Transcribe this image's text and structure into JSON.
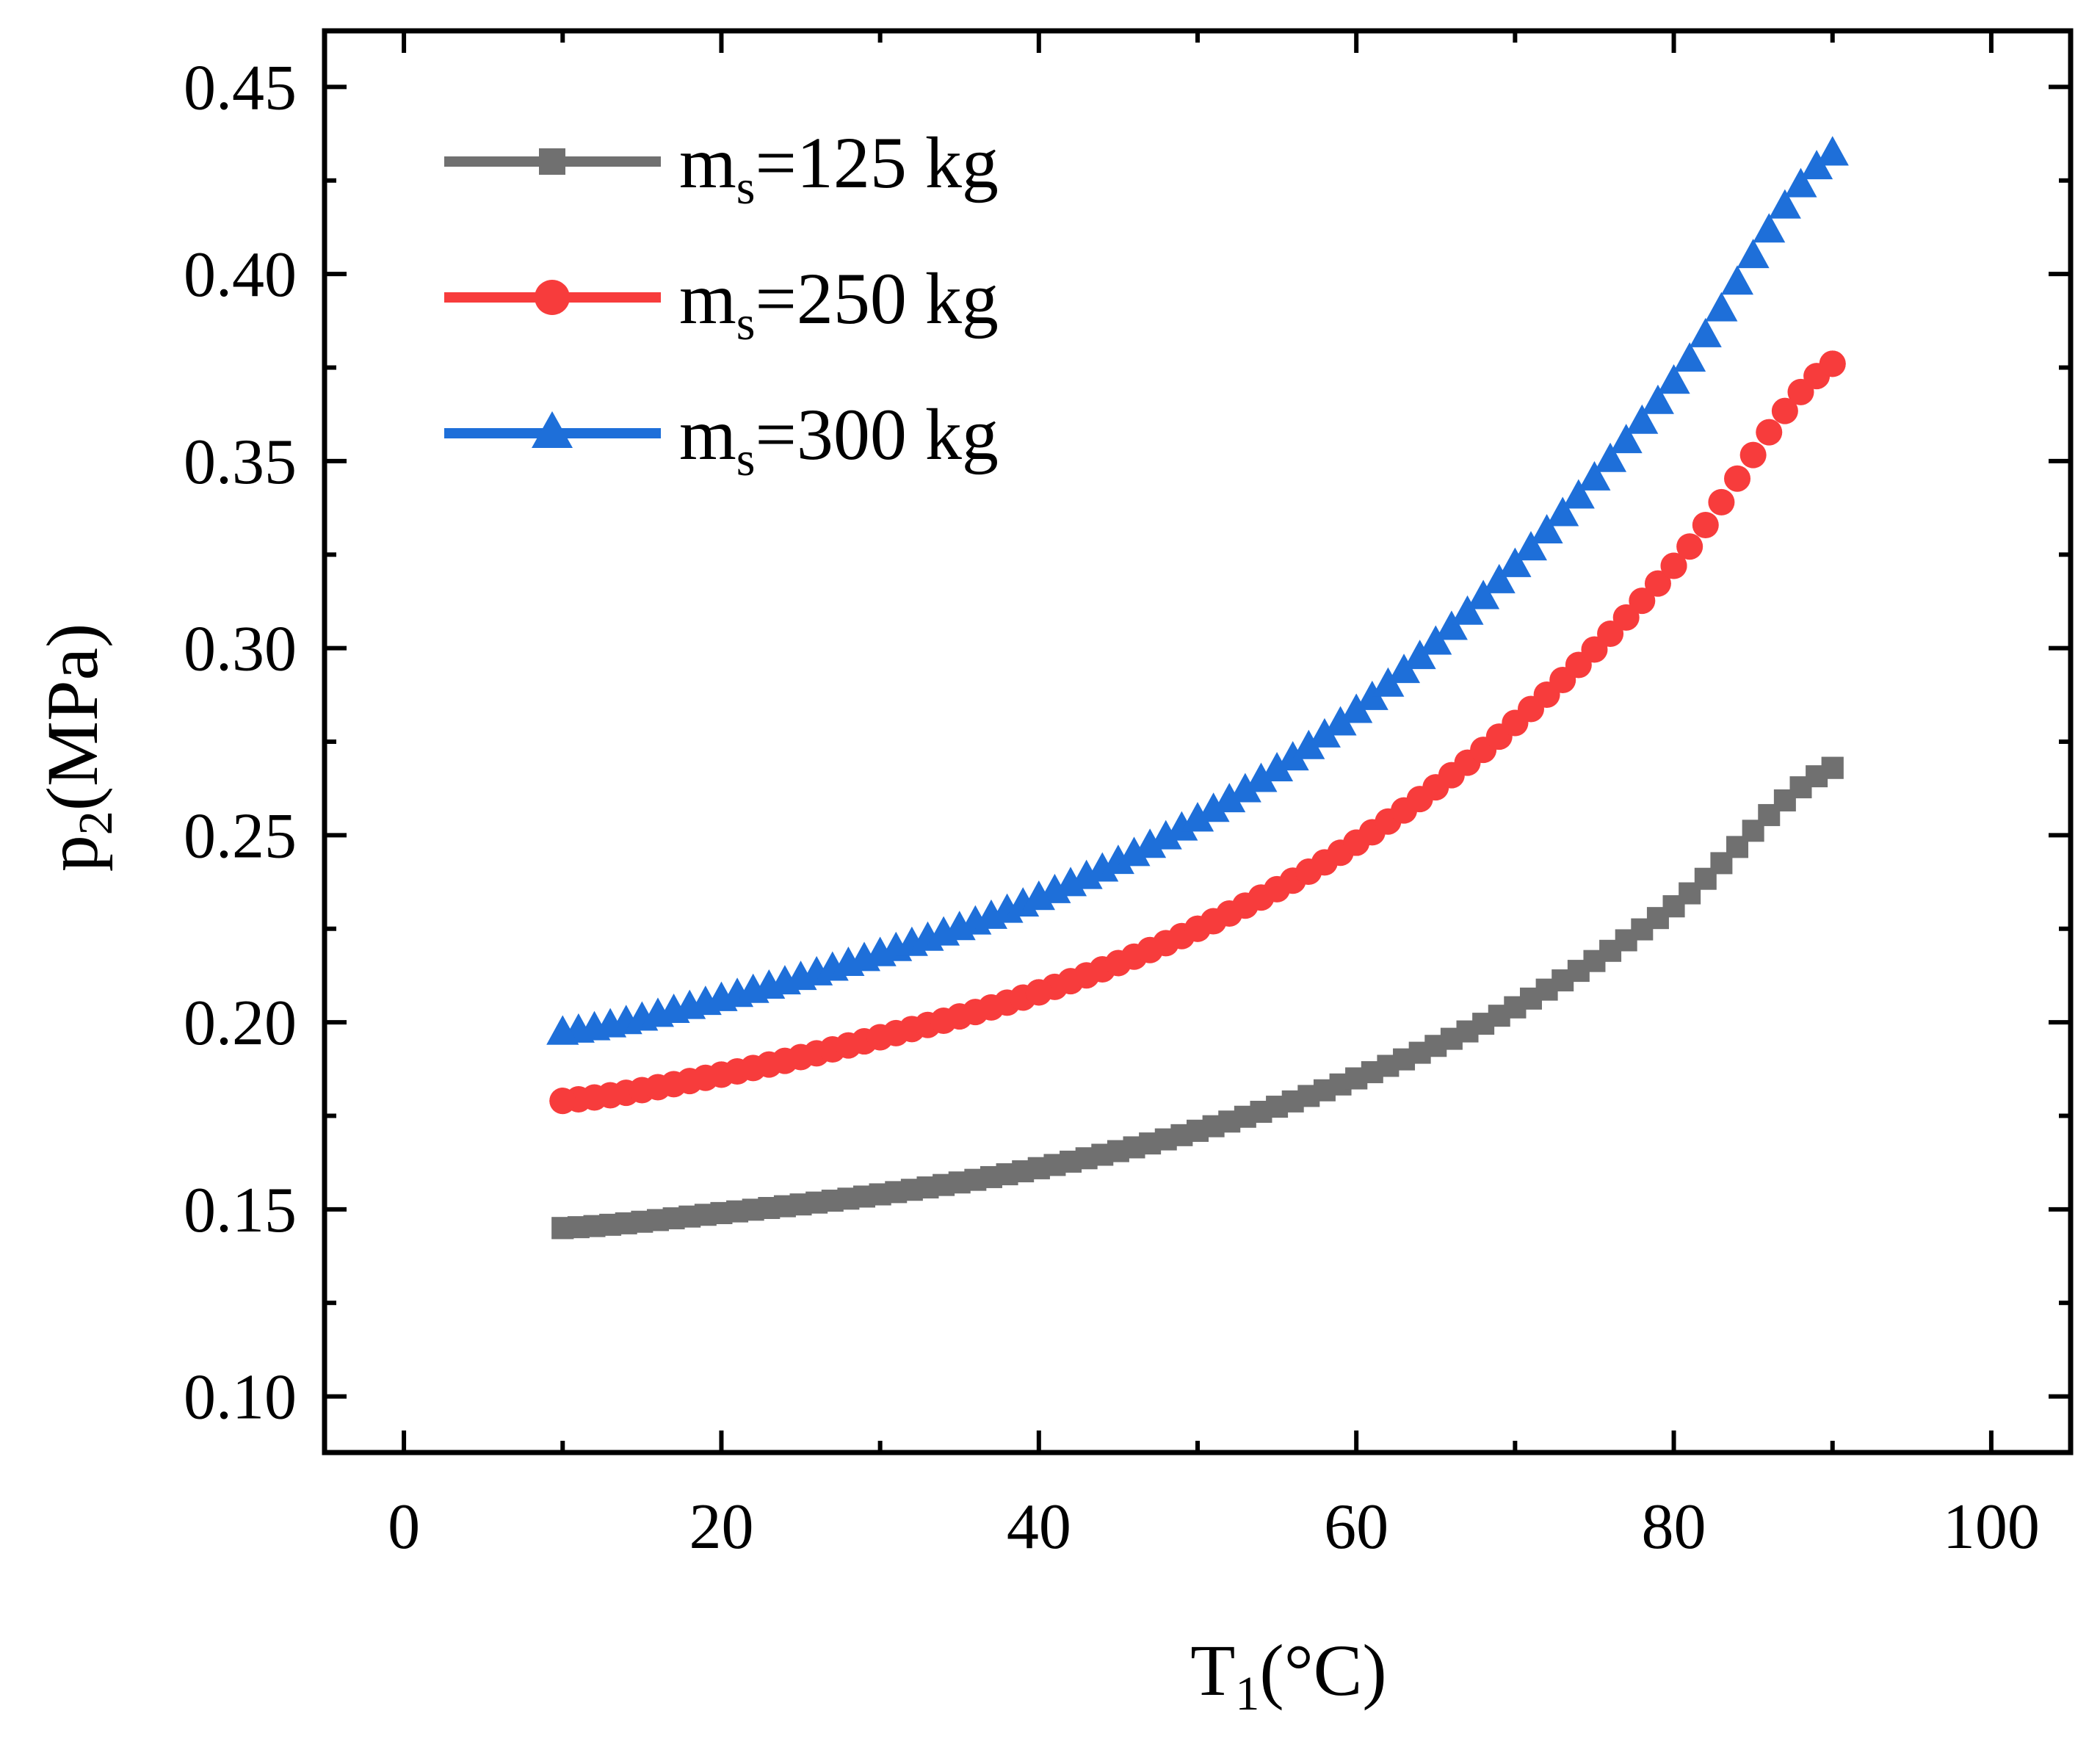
{
  "chart_data": {
    "type": "scatter",
    "title": "",
    "xlabel": {
      "main": "T",
      "sub": "1",
      "tail": "(°C)"
    },
    "ylabel": {
      "main": "p",
      "sub": "2",
      "tail": "(MPa)"
    },
    "xlim": [
      -5,
      105
    ],
    "ylim": [
      0.085,
      0.465
    ],
    "xticks": [
      0,
      20,
      40,
      60,
      80,
      100
    ],
    "xtick_labels": [
      "0",
      "20",
      "40",
      "60",
      "80",
      "100"
    ],
    "yticks": [
      0.1,
      0.15,
      0.2,
      0.25,
      0.3,
      0.35,
      0.4,
      0.45
    ],
    "ytick_labels": [
      "0.10",
      "0.15",
      "0.20",
      "0.25",
      "0.30",
      "0.35",
      "0.40",
      "0.45"
    ],
    "legend_position": "top-left",
    "series": [
      {
        "name": "m_s=125 kg",
        "legend_main": "m",
        "legend_sub": "s",
        "legend_tail": "=125 kg",
        "color": "#707070",
        "marker": "square",
        "x": [
          10,
          20,
          30,
          40,
          50,
          60,
          70,
          80,
          90
        ],
        "y": [
          0.145,
          0.149,
          0.154,
          0.161,
          0.171,
          0.185,
          0.204,
          0.231,
          0.268
        ]
      },
      {
        "name": "m_s=250 kg",
        "legend_main": "m",
        "legend_sub": "s",
        "legend_tail": "=250 kg",
        "color": "#f73c3c",
        "marker": "circle",
        "x": [
          10,
          20,
          30,
          40,
          50,
          60,
          70,
          80,
          90
        ],
        "y": [
          0.179,
          0.186,
          0.196,
          0.208,
          0.225,
          0.248,
          0.28,
          0.322,
          0.376
        ]
      },
      {
        "name": "m_s=300 kg",
        "legend_main": "m",
        "legend_sub": "s",
        "legend_tail": "=300 kg",
        "color": "#1e6fd9",
        "marker": "triangle",
        "x": [
          10,
          20,
          30,
          40,
          50,
          60,
          70,
          80,
          90
        ],
        "y": [
          0.197,
          0.206,
          0.218,
          0.233,
          0.254,
          0.283,
          0.322,
          0.371,
          0.432
        ]
      }
    ]
  }
}
